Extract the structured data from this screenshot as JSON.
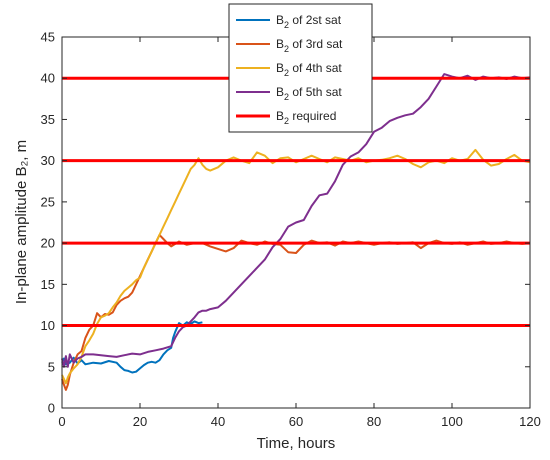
{
  "chart_data": {
    "type": "line",
    "xlabel": "Time, hours",
    "ylabel": "In-plane amplitude B₂, m",
    "xlim": [
      0,
      120
    ],
    "ylim": [
      0,
      45
    ],
    "xticks": [
      0,
      20,
      40,
      60,
      80,
      100,
      120
    ],
    "yticks": [
      0,
      5,
      10,
      15,
      20,
      25,
      30,
      35,
      40,
      45
    ],
    "grid": false,
    "box": true,
    "legend_position": "top-center",
    "legend": [
      "B2 of 2st sat",
      "B2 of 3rd sat",
      "B2 of 4th sat",
      "B2 of 5th sat",
      "B2 required"
    ],
    "series": [
      {
        "name": "B2 of 2st sat",
        "color": "#0072BD",
        "x": [
          0,
          0.5,
          1,
          2,
          3,
          4,
          5,
          6,
          8,
          10,
          12,
          14,
          15,
          16,
          17,
          18,
          19,
          20,
          21,
          22,
          23,
          24,
          25,
          26,
          27,
          28,
          28.5,
          29,
          30,
          31,
          32,
          33,
          34,
          35,
          36
        ],
        "y": [
          5.5,
          6.0,
          5.3,
          5.5,
          6.1,
          5.4,
          5.8,
          5.3,
          5.5,
          5.4,
          5.7,
          5.5,
          5.0,
          4.6,
          4.5,
          4.3,
          4.4,
          4.8,
          5.2,
          5.5,
          5.6,
          5.5,
          5.8,
          6.5,
          7.0,
          7.3,
          8.5,
          9.2,
          10.3,
          10.0,
          10.4,
          10.2,
          10.5,
          10.3,
          10.4
        ]
      },
      {
        "name": "B2 of 3rd sat",
        "color": "#D95319",
        "x": [
          0,
          0.5,
          1,
          1.5,
          2,
          3,
          4,
          5,
          6,
          7,
          8,
          9,
          10,
          11,
          12,
          13,
          14,
          15,
          16,
          17,
          18,
          19,
          20,
          21,
          22,
          23,
          24,
          25,
          26,
          27,
          28,
          30,
          32,
          34,
          36,
          38,
          40,
          42,
          44,
          46,
          48,
          50,
          52,
          54,
          56,
          58,
          60,
          62,
          64,
          66,
          68,
          70,
          72,
          74,
          76,
          78,
          80,
          82,
          84,
          86,
          88,
          90,
          92,
          94,
          96,
          98,
          100,
          102,
          104,
          106,
          108,
          110,
          112,
          114,
          116,
          118,
          120
        ],
        "y": [
          3.5,
          2.8,
          2.2,
          2.8,
          4.0,
          5.5,
          6.5,
          6.9,
          8.5,
          9.5,
          10.0,
          11.5,
          11.0,
          11.4,
          11.3,
          11.6,
          12.5,
          13.0,
          13.3,
          13.5,
          14.0,
          15.0,
          16.0,
          17.0,
          18.0,
          19.0,
          20.0,
          21.0,
          20.5,
          20.0,
          19.6,
          20.2,
          19.8,
          20.0,
          20.0,
          19.6,
          19.3,
          19.0,
          19.4,
          20.3,
          20.0,
          19.8,
          20.2,
          19.9,
          19.8,
          18.9,
          18.8,
          19.8,
          20.3,
          20.0,
          20.1,
          19.7,
          20.2,
          20.0,
          20.2,
          20.0,
          19.8,
          20.0,
          20.1,
          19.9,
          20.0,
          20.1,
          19.4,
          20.0,
          20.3,
          20.0,
          19.9,
          20.1,
          19.8,
          20.0,
          20.2,
          19.9,
          20.0,
          20.2,
          20.0,
          19.9,
          20.0
        ]
      },
      {
        "name": "B2 of 4th sat",
        "color": "#EDB120",
        "x": [
          0,
          0.5,
          1,
          1.5,
          2,
          3,
          4,
          5,
          6,
          7,
          8,
          9,
          10,
          11,
          12,
          13,
          14,
          15,
          16,
          17,
          18,
          19,
          20,
          21,
          22,
          23,
          24,
          25,
          26,
          27,
          28,
          29,
          30,
          31,
          32,
          33,
          34,
          35,
          36,
          37,
          38,
          39,
          40,
          42,
          44,
          46,
          48,
          50,
          52,
          54,
          56,
          58,
          60,
          62,
          64,
          66,
          68,
          70,
          72,
          74,
          76,
          78,
          80,
          82,
          84,
          86,
          88,
          90,
          92,
          94,
          96,
          98,
          100,
          102,
          104,
          106,
          108,
          110,
          112,
          114,
          116,
          118,
          120
        ],
        "y": [
          4.0,
          3.5,
          3.0,
          3.7,
          4.2,
          4.8,
          5.3,
          6.2,
          7.5,
          8.2,
          9.0,
          10.2,
          11.0,
          11.2,
          11.5,
          12.2,
          12.8,
          13.6,
          14.2,
          14.6,
          15.0,
          15.5,
          15.8,
          17.0,
          18.0,
          19.0,
          20.0,
          21.0,
          22.0,
          23.0,
          24.0,
          25.0,
          26.0,
          27.0,
          28.0,
          29.0,
          29.5,
          30.3,
          29.5,
          29.0,
          28.8,
          29.0,
          29.2,
          30.0,
          30.4,
          30.0,
          29.7,
          31.0,
          30.6,
          29.7,
          30.3,
          30.4,
          29.8,
          30.2,
          30.6,
          30.2,
          29.8,
          30.4,
          30.2,
          30.0,
          30.3,
          29.8,
          30.0,
          30.1,
          30.3,
          30.6,
          30.2,
          29.6,
          29.2,
          29.8,
          30.0,
          29.7,
          30.3,
          30.0,
          30.2,
          31.3,
          30.1,
          29.4,
          29.6,
          30.2,
          30.7,
          30.0,
          29.8
        ]
      },
      {
        "name": "B2 of 5th sat",
        "color": "#7E2F8E",
        "x": [
          0,
          0.5,
          1,
          1.5,
          2,
          3,
          4,
          5,
          6,
          8,
          10,
          12,
          14,
          16,
          18,
          20,
          22,
          24,
          26,
          28,
          29,
          30,
          31,
          32,
          33,
          34,
          35,
          36,
          37,
          38,
          40,
          42,
          44,
          46,
          48,
          50,
          52,
          54,
          56,
          58,
          60,
          62,
          64,
          66,
          68,
          70,
          72,
          74,
          76,
          78,
          80,
          82,
          84,
          86,
          88,
          90,
          92,
          94,
          96,
          98,
          100,
          102,
          104,
          106,
          108,
          110,
          112,
          114,
          116,
          118,
          120
        ],
        "y": [
          6.0,
          5.0,
          6.3,
          5.0,
          6.5,
          5.5,
          6.0,
          6.2,
          6.5,
          6.5,
          6.4,
          6.3,
          6.2,
          6.4,
          6.6,
          6.5,
          6.8,
          7.0,
          7.2,
          7.5,
          8.5,
          9.3,
          9.8,
          10.0,
          10.5,
          11.0,
          11.6,
          11.8,
          11.8,
          12.0,
          12.2,
          13.0,
          14.0,
          15.0,
          16.0,
          17.0,
          18.0,
          19.5,
          20.5,
          22.0,
          22.5,
          22.8,
          24.5,
          25.8,
          26.0,
          27.5,
          29.5,
          30.5,
          31.0,
          32.0,
          33.5,
          34.0,
          34.8,
          35.2,
          35.5,
          35.7,
          36.5,
          37.5,
          39.0,
          40.5,
          40.2,
          40.0,
          40.3,
          39.8,
          40.2,
          40.0,
          40.1,
          39.9,
          40.2,
          40.0,
          40.1
        ]
      },
      {
        "name": "B2 required",
        "color": "#FF0000",
        "levels": [
          10,
          20,
          30,
          40
        ]
      }
    ]
  }
}
